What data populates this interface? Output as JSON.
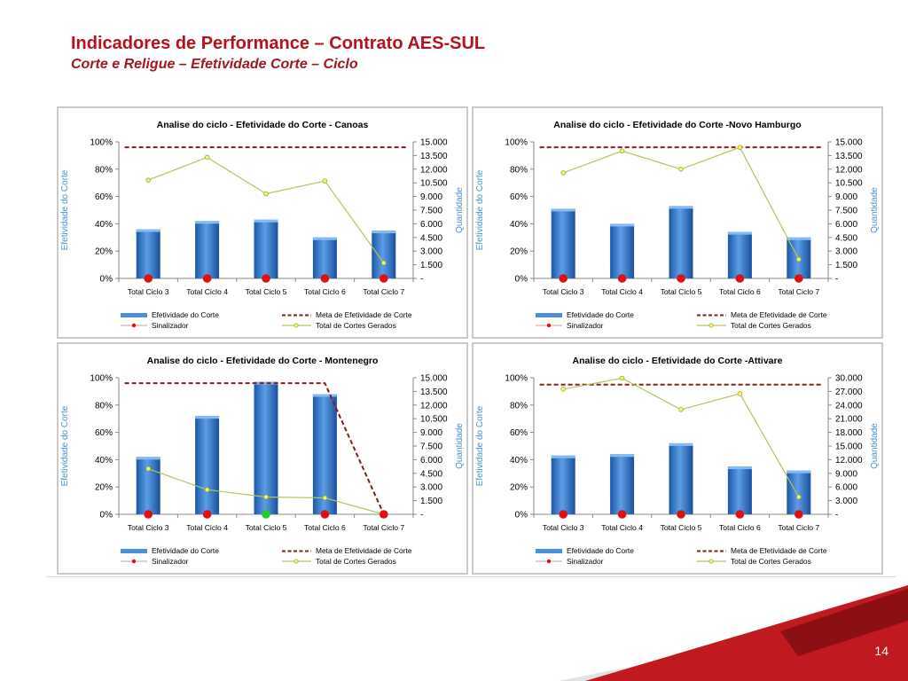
{
  "slide": {
    "title": "Indicadores de Performance – Contrato AES-SUL",
    "subtitle": "Corte e Religue – Efetividade Corte – Ciclo",
    "page_number": "14"
  },
  "colors": {
    "bar": "#2f78c8",
    "meta_line": "#8b1a1a",
    "total_line": "#b6c45a",
    "sinalizador_red": "#e01010",
    "sinalizador_green": "#22cc22",
    "axis_text": "#000000",
    "axis_title": "#4a8fd4",
    "deco_red": "#c0191f"
  },
  "chart_data": [
    {
      "type": "bar",
      "title": "Analise do ciclo -  Efetividade do Corte - Canoas",
      "categories": [
        "Total Ciclo 3",
        "Total Ciclo 4",
        "Total Ciclo 5",
        "Total Ciclo 6",
        "Total Ciclo 7"
      ],
      "ylabel": "Efetividade do Corte",
      "y2label": "Quantidade",
      "ylim": [
        0,
        100
      ],
      "yticks": [
        "100%",
        "80%",
        "60%",
        "40%",
        "20%",
        "0%"
      ],
      "y2lim": [
        0,
        15000
      ],
      "y2ticks": [
        "15.000",
        "13.500",
        "12.000",
        "10.500",
        "9.000",
        "7.500",
        "6.000",
        "4.500",
        "3.000",
        "1.500",
        "-"
      ],
      "series": [
        {
          "name": "Efetividade do Corte",
          "kind": "bar",
          "axis": "left",
          "values": [
            36,
            42,
            43,
            30,
            35
          ]
        },
        {
          "name": "Meta de Efetividade de Corte",
          "kind": "dashed-line",
          "axis": "left",
          "values": [
            96,
            96,
            96,
            96,
            96
          ]
        },
        {
          "name": "Sinalizador",
          "kind": "marker",
          "axis": "left",
          "values": [
            0,
            0,
            0,
            0,
            0
          ],
          "colors": [
            "red",
            "red",
            "red",
            "red",
            "red"
          ]
        },
        {
          "name": "Total de Cortes Gerados",
          "kind": "line",
          "axis": "right",
          "values": [
            10800,
            13300,
            9300,
            10700,
            1700
          ]
        }
      ]
    },
    {
      "type": "bar",
      "title": "Analise do ciclo -  Efetividade do Corte -Novo Hamburgo",
      "categories": [
        "Total Ciclo 3",
        "Total Ciclo 4",
        "Total Ciclo 5",
        "Total Ciclo 6",
        "Total Ciclo 7"
      ],
      "ylabel": "Efetividade do Corte",
      "y2label": "Quantidade",
      "ylim": [
        0,
        100
      ],
      "yticks": [
        "100%",
        "80%",
        "60%",
        "40%",
        "20%",
        "0%"
      ],
      "y2lim": [
        0,
        15000
      ],
      "y2ticks": [
        "15.000",
        "13.500",
        "12.000",
        "10.500",
        "9.000",
        "7.500",
        "6.000",
        "4.500",
        "3.000",
        "1.500",
        "-"
      ],
      "series": [
        {
          "name": "Efetividade do Corte",
          "kind": "bar",
          "axis": "left",
          "values": [
            51,
            40,
            53,
            34,
            30
          ]
        },
        {
          "name": "Meta de Efetividade de Corte",
          "kind": "dashed-line",
          "axis": "left",
          "values": [
            96,
            96,
            96,
            96,
            96
          ]
        },
        {
          "name": "Sinalizador",
          "kind": "marker",
          "axis": "left",
          "values": [
            0,
            0,
            0,
            0,
            0
          ],
          "colors": [
            "red",
            "red",
            "red",
            "red",
            "red"
          ]
        },
        {
          "name": "Total de Cortes Gerados",
          "kind": "line",
          "axis": "right",
          "values": [
            11600,
            14000,
            12000,
            14400,
            2100
          ]
        }
      ]
    },
    {
      "type": "bar",
      "title": "Analise do ciclo -  Efetividade do Corte - Montenegro",
      "categories": [
        "Total Ciclo 3",
        "Total Ciclo 4",
        "Total Ciclo 5",
        "Total Ciclo 6",
        "Total Ciclo 7"
      ],
      "ylabel": "Efetividade do Corte",
      "y2label": "Quantidade",
      "ylim": [
        0,
        100
      ],
      "yticks": [
        "100%",
        "80%",
        "60%",
        "40%",
        "20%",
        "0%"
      ],
      "y2lim": [
        0,
        15000
      ],
      "y2ticks": [
        "15.000",
        "13.500",
        "12.000",
        "10.500",
        "9.000",
        "7.500",
        "6.000",
        "4.500",
        "3.000",
        "1.500",
        "-"
      ],
      "series": [
        {
          "name": "Efetividade do Corte",
          "kind": "bar",
          "axis": "left",
          "values": [
            42,
            72,
            97,
            88,
            0
          ]
        },
        {
          "name": "Meta de Efetividade de Corte",
          "kind": "dashed-line",
          "axis": "left",
          "values": [
            96,
            96,
            96,
            96,
            0
          ]
        },
        {
          "name": "Sinalizador",
          "kind": "marker",
          "axis": "left",
          "values": [
            0,
            0,
            0,
            0,
            0
          ],
          "colors": [
            "red",
            "red",
            "green",
            "red",
            "red"
          ]
        },
        {
          "name": "Total de Cortes Gerados",
          "kind": "line",
          "axis": "right",
          "values": [
            5000,
            2700,
            1900,
            1800,
            0
          ]
        }
      ]
    },
    {
      "type": "bar",
      "title": "Analise do ciclo -  Efetividade do Corte -Attivare",
      "categories": [
        "Total Ciclo 3",
        "Total Ciclo 4",
        "Total Ciclo 5",
        "Total Ciclo 6",
        "Total Ciclo 7"
      ],
      "ylabel": "Efetividade do Corte",
      "y2label": "Quantidade",
      "ylim": [
        0,
        100
      ],
      "yticks": [
        "100%",
        "80%",
        "60%",
        "40%",
        "20%",
        "0%"
      ],
      "y2lim": [
        0,
        30000
      ],
      "y2ticks": [
        "30.000",
        "27.000",
        "24.000",
        "21.000",
        "18.000",
        "15.000",
        "12.000",
        "9.000",
        "6.000",
        "3.000",
        "-"
      ],
      "series": [
        {
          "name": "Efetividade do Corte",
          "kind": "bar",
          "axis": "left",
          "values": [
            43,
            44,
            52,
            35,
            32
          ]
        },
        {
          "name": "Meta de Efetividade de Corte",
          "kind": "dashed-line",
          "axis": "left",
          "values": [
            95,
            95,
            95,
            95,
            95
          ]
        },
        {
          "name": "Sinalizador",
          "kind": "marker",
          "axis": "left",
          "values": [
            0,
            0,
            0,
            0,
            0
          ],
          "colors": [
            "red",
            "red",
            "red",
            "red",
            "red"
          ]
        },
        {
          "name": "Total de Cortes Gerados",
          "kind": "line",
          "axis": "right",
          "values": [
            27500,
            29900,
            23000,
            26500,
            3800
          ]
        }
      ]
    }
  ]
}
